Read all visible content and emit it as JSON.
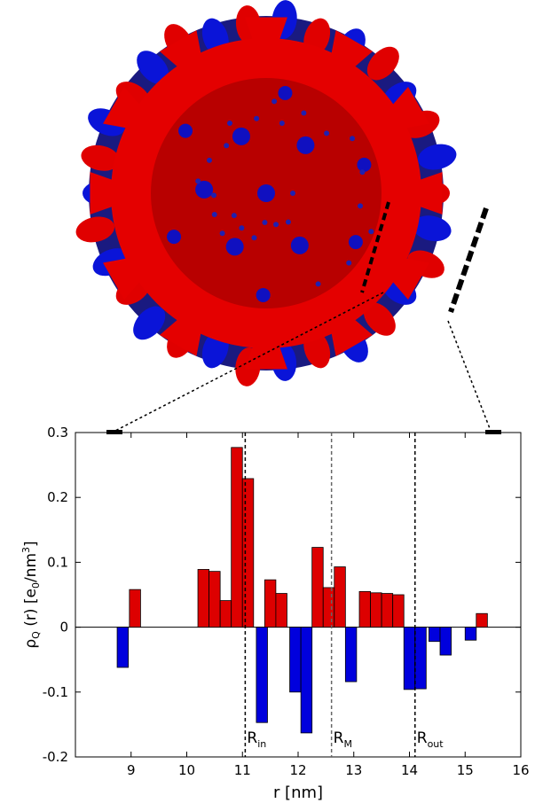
{
  "chart_data": {
    "type": "bar",
    "x": [
      8.85,
      9.07,
      10.3,
      10.5,
      10.7,
      10.9,
      11.1,
      11.35,
      11.5,
      11.7,
      11.95,
      12.15,
      12.35,
      12.55,
      12.75,
      12.95,
      13.2,
      13.4,
      13.6,
      13.8,
      14.0,
      14.2,
      14.45,
      14.65,
      15.1,
      15.3
    ],
    "values": [
      -0.062,
      0.058,
      0.089,
      0.086,
      0.041,
      0.277,
      0.229,
      -0.147,
      0.073,
      0.052,
      -0.1,
      -0.163,
      0.123,
      0.061,
      0.093,
      -0.084,
      0.055,
      0.053,
      0.052,
      0.05,
      -0.096,
      -0.095,
      -0.022,
      -0.043,
      -0.02,
      0.021
    ],
    "positive_color": "#dd0000",
    "negative_color": "#0000dd",
    "xlim": [
      8,
      16
    ],
    "xticks": [
      9,
      10,
      11,
      12,
      13,
      14,
      15,
      16
    ],
    "ylim": [
      -0.2,
      0.3
    ],
    "yticks": [
      0.3,
      0.2,
      0.1,
      0,
      -0.1,
      -0.2
    ],
    "xlabel": "r [nm]",
    "ylabel": [
      "ρ",
      "Q",
      " (r) [e",
      "0",
      "/nm",
      "3",
      "]"
    ],
    "annotations": [
      {
        "x": 11.05,
        "label": "R",
        "sub": "in",
        "color": "#000000"
      },
      {
        "x": 12.6,
        "label": "R",
        "sub": "M",
        "color": "#666666"
      },
      {
        "x": 14.1,
        "label": "R",
        "sub": "out",
        "color": "#000000"
      }
    ]
  }
}
